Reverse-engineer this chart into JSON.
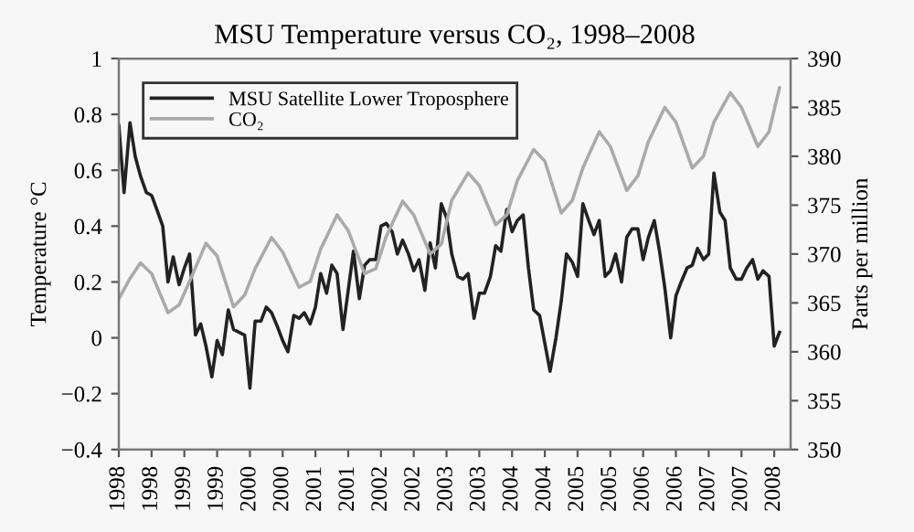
{
  "chart_data": {
    "type": "line",
    "title": "MSU Temperature versus CO₂, 1998–2008",
    "ylabel": "Temperature °C",
    "y2label": "Parts per million",
    "xlim": [
      1998,
      2008.25
    ],
    "xticks": [
      {
        "value": 1998,
        "label": "1998"
      },
      {
        "value": 1998.5,
        "label": "1998"
      },
      {
        "value": 1999,
        "label": "1999"
      },
      {
        "value": 1999.5,
        "label": "1999"
      },
      {
        "value": 2000,
        "label": "2000"
      },
      {
        "value": 2000.5,
        "label": "2000"
      },
      {
        "value": 2001,
        "label": "2001"
      },
      {
        "value": 2001.5,
        "label": "2001"
      },
      {
        "value": 2002,
        "label": "2002"
      },
      {
        "value": 2002.5,
        "label": "2002"
      },
      {
        "value": 2003,
        "label": "2003"
      },
      {
        "value": 2003.5,
        "label": "2003"
      },
      {
        "value": 2004,
        "label": "2004"
      },
      {
        "value": 2004.5,
        "label": "2004"
      },
      {
        "value": 2005,
        "label": "2005"
      },
      {
        "value": 2005.5,
        "label": "2005"
      },
      {
        "value": 2006,
        "label": "2006"
      },
      {
        "value": 2006.5,
        "label": "2006"
      },
      {
        "value": 2007,
        "label": "2007"
      },
      {
        "value": 2007.5,
        "label": "2007"
      },
      {
        "value": 2008,
        "label": "2008"
      }
    ],
    "ylim": [
      -0.4,
      1
    ],
    "yticks": [
      {
        "value": -0.4,
        "label": "−0.4"
      },
      {
        "value": -0.2,
        "label": "−0.2"
      },
      0,
      0.2,
      0.4,
      0.6,
      0.8,
      1
    ],
    "y2lim": [
      350,
      390
    ],
    "y2ticks": [
      350,
      355,
      360,
      365,
      370,
      375,
      380,
      385,
      390
    ],
    "grid": false,
    "legend": "top left",
    "marker": "none",
    "line_style": "solid",
    "series": [
      {
        "name": "MSU Satellite Lower Troposphere",
        "color": "#222222",
        "x": [
          1998.0,
          1998.08,
          1998.17,
          1998.25,
          1998.33,
          1998.42,
          1998.5,
          1998.58,
          1998.67,
          1998.75,
          1998.83,
          1998.92,
          1999.0,
          1999.08,
          1999.17,
          1999.25,
          1999.33,
          1999.42,
          1999.5,
          1999.58,
          1999.67,
          1999.75,
          1999.83,
          1999.92,
          2000.0,
          2000.08,
          2000.17,
          2000.25,
          2000.33,
          2000.42,
          2000.5,
          2000.58,
          2000.67,
          2000.75,
          2000.83,
          2000.92,
          2001.0,
          2001.08,
          2001.17,
          2001.25,
          2001.33,
          2001.42,
          2001.5,
          2001.58,
          2001.67,
          2001.75,
          2001.83,
          2001.92,
          2002.0,
          2002.08,
          2002.17,
          2002.25,
          2002.33,
          2002.42,
          2002.5,
          2002.58,
          2002.67,
          2002.75,
          2002.83,
          2002.92,
          2003.0,
          2003.08,
          2003.17,
          2003.25,
          2003.33,
          2003.42,
          2003.5,
          2003.58,
          2003.67,
          2003.75,
          2003.83,
          2003.92,
          2004.0,
          2004.08,
          2004.17,
          2004.25,
          2004.33,
          2004.42,
          2004.5,
          2004.58,
          2004.67,
          2004.75,
          2004.83,
          2004.92,
          2005.0,
          2005.08,
          2005.17,
          2005.25,
          2005.33,
          2005.42,
          2005.5,
          2005.58,
          2005.67,
          2005.75,
          2005.83,
          2005.92,
          2006.0,
          2006.08,
          2006.17,
          2006.25,
          2006.33,
          2006.42,
          2006.5,
          2006.58,
          2006.67,
          2006.75,
          2006.83,
          2006.92,
          2007.0,
          2007.08,
          2007.17,
          2007.25,
          2007.33,
          2007.42,
          2007.5,
          2007.58,
          2007.67,
          2007.75,
          2007.83,
          2007.92,
          2008.0,
          2008.08
        ],
        "values": [
          0.76,
          0.52,
          0.77,
          0.65,
          0.58,
          0.52,
          0.51,
          0.46,
          0.4,
          0.2,
          0.29,
          0.19,
          0.25,
          0.3,
          0.01,
          0.05,
          -0.03,
          -0.14,
          -0.01,
          -0.06,
          0.1,
          0.03,
          0.02,
          0.01,
          -0.18,
          0.06,
          0.06,
          0.11,
          0.09,
          0.04,
          -0.01,
          -0.05,
          0.08,
          0.07,
          0.09,
          0.05,
          0.11,
          0.23,
          0.16,
          0.26,
          0.23,
          0.03,
          0.17,
          0.31,
          0.14,
          0.26,
          0.28,
          0.28,
          0.4,
          0.41,
          0.38,
          0.3,
          0.35,
          0.3,
          0.24,
          0.28,
          0.17,
          0.34,
          0.25,
          0.48,
          0.43,
          0.3,
          0.22,
          0.21,
          0.23,
          0.07,
          0.16,
          0.16,
          0.22,
          0.33,
          0.31,
          0.46,
          0.38,
          0.42,
          0.44,
          0.25,
          0.1,
          0.08,
          -0.02,
          -0.12,
          0.0,
          0.13,
          0.3,
          0.27,
          0.22,
          0.48,
          0.42,
          0.37,
          0.42,
          0.22,
          0.24,
          0.3,
          0.2,
          0.36,
          0.39,
          0.39,
          0.28,
          0.36,
          0.42,
          0.31,
          0.18,
          0.0,
          0.15,
          0.2,
          0.25,
          0.26,
          0.32,
          0.28,
          0.3,
          0.59,
          0.45,
          0.42,
          0.25,
          0.21,
          0.21,
          0.25,
          0.28,
          0.21,
          0.24,
          0.22,
          -0.03,
          0.02
        ]
      },
      {
        "name": "CO₂",
        "color": "#aaaaaa",
        "axis": "y2",
        "x": [
          1998.0,
          1998.17,
          1998.33,
          1998.5,
          1998.75,
          1998.92,
          1999.08,
          1999.33,
          1999.5,
          1999.75,
          1999.92,
          2000.08,
          2000.33,
          2000.5,
          2000.75,
          2000.92,
          2001.08,
          2001.33,
          2001.5,
          2001.75,
          2001.92,
          2002.08,
          2002.33,
          2002.5,
          2002.75,
          2002.92,
          2003.08,
          2003.33,
          2003.5,
          2003.75,
          2003.92,
          2004.08,
          2004.33,
          2004.5,
          2004.75,
          2004.92,
          2005.08,
          2005.33,
          2005.5,
          2005.75,
          2005.92,
          2006.08,
          2006.33,
          2006.5,
          2006.75,
          2006.92,
          2007.08,
          2007.33,
          2007.5,
          2007.75,
          2007.92,
          2008.08
        ],
        "values": [
          365.4,
          367.5,
          369.1,
          368.0,
          364.0,
          364.8,
          367.2,
          371.1,
          369.8,
          364.6,
          365.8,
          368.5,
          371.7,
          370.2,
          366.6,
          367.2,
          370.5,
          374.0,
          372.4,
          368.0,
          368.5,
          371.8,
          375.4,
          374.0,
          370.0,
          371.0,
          375.5,
          378.3,
          377.0,
          373.0,
          374.0,
          377.5,
          380.7,
          379.5,
          374.2,
          375.5,
          378.8,
          382.5,
          381.0,
          376.5,
          378.0,
          381.5,
          385.0,
          383.5,
          378.8,
          380.0,
          383.5,
          386.5,
          385.0,
          381.0,
          382.5,
          387.0
        ]
      }
    ]
  }
}
